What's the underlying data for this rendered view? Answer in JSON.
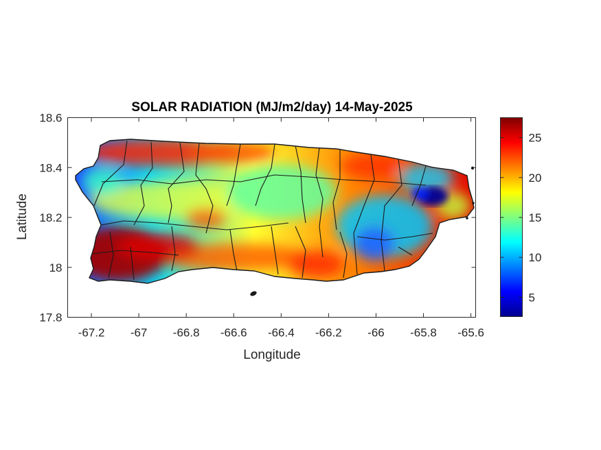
{
  "figure": {
    "title": "SOLAR RADIATION (MJ/m2/day) 14-May-2025",
    "xlabel": "Longitude",
    "ylabel": "Latitude"
  },
  "map": {
    "type": "filled-contour",
    "region": "Puerto Rico",
    "colormap": "jet",
    "municipality_boundaries": true,
    "lon_range": [
      -67.3,
      -65.58
    ],
    "lat_range": [
      17.8,
      18.6
    ],
    "x_ticks": [
      "-67.2",
      "-67",
      "-66.8",
      "-66.6",
      "-66.4",
      "-66.2",
      "-66",
      "-65.8",
      "-65.6"
    ],
    "y_ticks": [
      "18.6",
      "18.4",
      "18.2",
      "18",
      "17.8"
    ],
    "colorbar": {
      "min": 2.5,
      "max": 27.5,
      "ticks": [
        "25",
        "20",
        "15",
        "10",
        "5"
      ]
    },
    "grid": false
  },
  "colors": {
    "axis": "#262626",
    "boundary": "#1a1a1a",
    "jet_dark_blue": "#00008f",
    "jet_blue": "#0000ff",
    "jet_cyan": "#00ffff",
    "jet_yellow": "#ffff00",
    "jet_red": "#ff0000",
    "jet_dark_red": "#800000"
  }
}
